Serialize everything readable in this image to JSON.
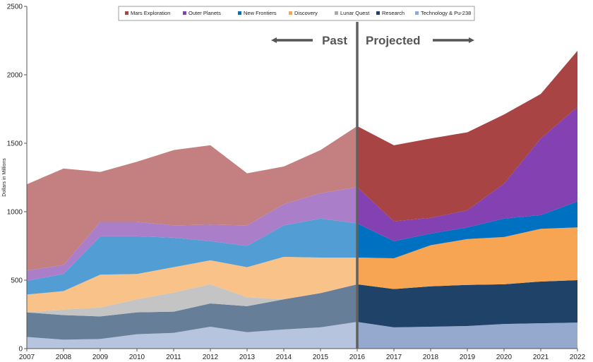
{
  "chart_data": {
    "type": "area",
    "stacked": true,
    "ylabel": "Dollars in Millions",
    "xlabel": "",
    "title": "",
    "ylim": [
      0,
      2500
    ],
    "yticks": [
      0,
      500,
      1000,
      1500,
      2000,
      2500
    ],
    "x": [
      2007,
      2008,
      2009,
      2010,
      2011,
      2012,
      2013,
      2014,
      2015,
      2016,
      2017,
      2018,
      2019,
      2020,
      2021,
      2022
    ],
    "divider_year": 2016,
    "past_label": "Past",
    "projected_label": "Projected",
    "legend_position": "top",
    "series": [
      {
        "name": "Technology & Pu-238",
        "color": "#95A9CF",
        "values": [
          85,
          65,
          70,
          105,
          115,
          160,
          120,
          140,
          155,
          195,
          155,
          160,
          165,
          180,
          185,
          190
        ]
      },
      {
        "name": "Research",
        "color": "#1F4269",
        "values": [
          180,
          180,
          165,
          160,
          155,
          170,
          190,
          220,
          250,
          275,
          280,
          295,
          300,
          290,
          305,
          310
        ]
      },
      {
        "name": "Lunar Quest",
        "color": "#A9A9A9",
        "values": [
          0,
          40,
          65,
          95,
          140,
          140,
          65,
          0,
          0,
          0,
          0,
          0,
          0,
          0,
          0,
          0
        ]
      },
      {
        "name": "Discovery",
        "color": "#F7A552",
        "values": [
          130,
          135,
          240,
          185,
          185,
          175,
          220,
          310,
          260,
          195,
          225,
          300,
          335,
          345,
          385,
          385
        ]
      },
      {
        "name": "New Frontiers",
        "color": "#0070C0",
        "values": [
          100,
          125,
          280,
          275,
          215,
          140,
          155,
          230,
          285,
          250,
          125,
          85,
          85,
          135,
          100,
          190
        ]
      },
      {
        "name": "Outer Planets",
        "color": "#8441B2",
        "values": [
          75,
          65,
          105,
          105,
          90,
          120,
          150,
          155,
          185,
          265,
          145,
          115,
          125,
          255,
          560,
          690
        ]
      },
      {
        "name": "Mars Exploration",
        "color": "#A84444",
        "values": [
          630,
          705,
          365,
          440,
          550,
          580,
          380,
          275,
          315,
          445,
          555,
          580,
          570,
          505,
          325,
          410
        ]
      }
    ],
    "legend_order": [
      "Mars Exploration",
      "Outer Planets",
      "New Frontiers",
      "Discovery",
      "Lunar Quest",
      "Research",
      "Technology & Pu-238"
    ]
  }
}
